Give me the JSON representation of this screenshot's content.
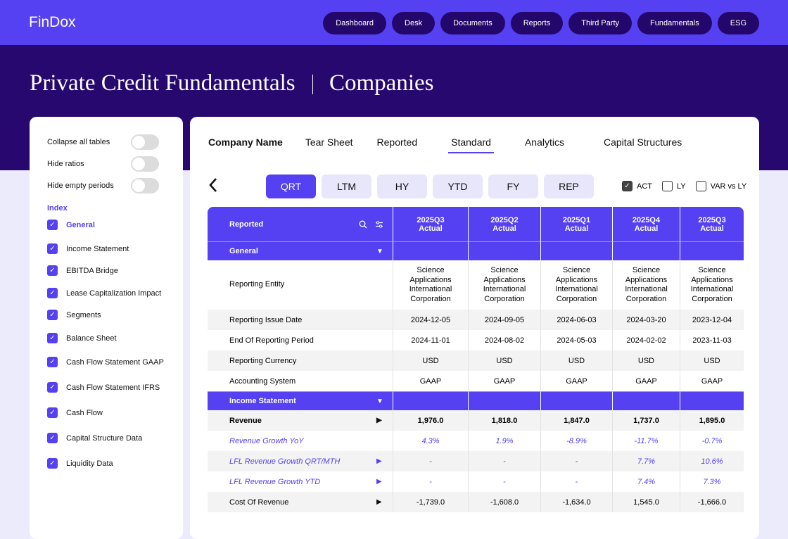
{
  "header": {
    "brand": "FinDox",
    "nav": [
      "Dashboard",
      "Desk",
      "Documents",
      "Reports",
      "Third Party",
      "Fundamentals",
      "ESG"
    ]
  },
  "page": {
    "title": "Private Credit Fundamentals",
    "subtitle": "Companies"
  },
  "sidebar": {
    "toggles": [
      "Collapse all tables",
      "Hide ratios",
      "Hide empty periods"
    ],
    "index_title": "Index",
    "index": [
      "General",
      "Income Statement",
      "EBITDA Bridge",
      "Lease Capitalization Impact",
      "Segments",
      "Balance Sheet",
      "Cash Flow Statement GAAP",
      "Cash Flow Statement IFRS",
      "Cash Flow",
      "Capital Structure Data",
      "Liquidity Data"
    ]
  },
  "tabs": [
    "Company Name",
    "Tear Sheet",
    "Reported",
    "Standard",
    "Analytics",
    "Capital Structures"
  ],
  "periods": [
    "QRT",
    "LTM",
    "HY",
    "YTD",
    "FY",
    "REP"
  ],
  "options": [
    {
      "label": "ACT",
      "checked": true
    },
    {
      "label": "LY",
      "checked": false
    },
    {
      "label": "VAR vs LY",
      "checked": false
    }
  ],
  "table": {
    "header": "Reported",
    "columns": [
      {
        "period": "2025Q3",
        "basis": "Actual"
      },
      {
        "period": "2025Q2",
        "basis": "Actual"
      },
      {
        "period": "2025Q1",
        "basis": "Actual"
      },
      {
        "period": "2025Q4",
        "basis": "Actual"
      },
      {
        "period": "2025Q3",
        "basis": "Actual"
      }
    ],
    "sections": [
      {
        "title": "General",
        "rows": [
          {
            "label": "Reporting Entity",
            "values": [
              "Science Applications International Corporation",
              "Science Applications International Corporation",
              "Science Applications International Corporation",
              "Science Applications International Corporation",
              "Science Applications International Corporation"
            ]
          },
          {
            "label": "Reporting Issue Date",
            "values": [
              "2024-12-05",
              "2024-09-05",
              "2024-06-03",
              "2024-03-20",
              "2023-12-04"
            ]
          },
          {
            "label": "End Of Reporting Period",
            "values": [
              "2024-11-01",
              "2024-08-02",
              "2024-05-03",
              "2024-02-02",
              "2023-11-03"
            ]
          },
          {
            "label": "Reporting Currency",
            "values": [
              "USD",
              "USD",
              "USD",
              "USD",
              "USD"
            ]
          },
          {
            "label": "Accounting System",
            "values": [
              "GAAP",
              "GAAP",
              "GAAP",
              "GAAP",
              "GAAP"
            ]
          }
        ]
      },
      {
        "title": "Income Statement",
        "rows": [
          {
            "label": "Revenue",
            "style": "bold",
            "arrow": true,
            "values": [
              "1,976.0",
              "1,818.0",
              "1,847.0",
              "1,737.0",
              "1,895.0"
            ]
          },
          {
            "label": "Revenue Growth YoY",
            "style": "italic",
            "arrow": false,
            "values": [
              "4.3%",
              "1.9%",
              "-8.9%",
              "-11.7%",
              "-0.7%"
            ]
          },
          {
            "label": "LFL Revenue Growth QRT/MTH",
            "style": "italic",
            "arrow": true,
            "values": [
              "-",
              "-",
              "-",
              "7.7%",
              "10.6%"
            ]
          },
          {
            "label": "LFL Revenue  Growth YTD",
            "style": "italic",
            "arrow": true,
            "values": [
              "-",
              "-",
              "-",
              "7.4%",
              "7.3%"
            ]
          },
          {
            "label": "Cost Of Revenue",
            "arrow": true,
            "values": [
              "-1,739.0",
              "-1,608.0",
              "-1,634.0",
              "1,545.0",
              "-1,666.0"
            ]
          }
        ]
      }
    ]
  }
}
